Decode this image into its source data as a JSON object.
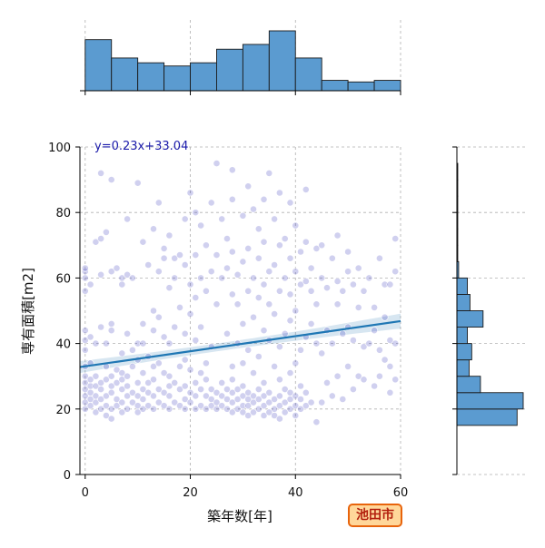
{
  "chart_data": {
    "type": "scatter",
    "subtype": "jointplot with regression line and marginal histograms",
    "xlabel": "築年数[年]",
    "ylabel": "専有面積[m2]",
    "xlim": [
      -1,
      60
    ],
    "ylim": [
      0,
      100
    ],
    "xticks": [
      "0",
      "20",
      "40",
      "60"
    ],
    "yticks": [
      "0",
      "20",
      "40",
      "60",
      "80",
      "100"
    ],
    "grid": true,
    "annotation": "y=0.23x+33.04",
    "regression": {
      "slope": 0.23,
      "intercept": 33.04
    },
    "badge": "池田市",
    "colors": {
      "points": "#2a2ab8",
      "regression_line": "#1f77b4",
      "histogram_fill": "#5b9bd0",
      "annotation": "#1a1aaa",
      "badge_border": "#e8640c",
      "badge_fill": "#ffd79a",
      "badge_text": "#b3200e"
    },
    "x_histogram": {
      "bin_edges": [
        0,
        5,
        10,
        15,
        20,
        25,
        30,
        35,
        40,
        45,
        50,
        55,
        60
      ],
      "counts": [
        64,
        41,
        35,
        31,
        35,
        52,
        58,
        75,
        41,
        13,
        11,
        13,
        7
      ]
    },
    "y_histogram": {
      "bin_edges": [
        10,
        15,
        20,
        25,
        30,
        35,
        40,
        45,
        50,
        55,
        60,
        65,
        70,
        75,
        80,
        85,
        90,
        95
      ],
      "counts": [
        0,
        69,
        76,
        27,
        14,
        17,
        12,
        30,
        15,
        12,
        2,
        1,
        1,
        1,
        1,
        1,
        1
      ]
    },
    "points": [
      [
        0,
        20
      ],
      [
        0,
        22
      ],
      [
        0,
        24
      ],
      [
        0,
        26
      ],
      [
        0,
        28
      ],
      [
        0,
        30
      ],
      [
        0,
        33
      ],
      [
        0,
        38
      ],
      [
        0,
        41
      ],
      [
        0,
        44
      ],
      [
        0,
        56
      ],
      [
        0,
        60
      ],
      [
        0,
        62
      ],
      [
        0,
        63
      ],
      [
        1,
        21
      ],
      [
        1,
        23
      ],
      [
        1,
        25
      ],
      [
        1,
        27
      ],
      [
        1,
        29
      ],
      [
        1,
        34
      ],
      [
        1,
        42
      ],
      [
        1,
        58
      ],
      [
        2,
        19
      ],
      [
        2,
        22
      ],
      [
        2,
        24
      ],
      [
        2,
        27
      ],
      [
        2,
        30
      ],
      [
        2,
        40
      ],
      [
        2,
        71
      ],
      [
        3,
        20
      ],
      [
        3,
        23
      ],
      [
        3,
        26
      ],
      [
        3,
        28
      ],
      [
        3,
        45
      ],
      [
        3,
        61
      ],
      [
        3,
        72
      ],
      [
        3,
        92
      ],
      [
        4,
        18
      ],
      [
        4,
        21
      ],
      [
        4,
        24
      ],
      [
        4,
        29
      ],
      [
        4,
        33
      ],
      [
        4,
        40
      ],
      [
        4,
        74
      ],
      [
        5,
        17
      ],
      [
        5,
        20
      ],
      [
        5,
        25
      ],
      [
        5,
        27
      ],
      [
        5,
        30
      ],
      [
        5,
        44
      ],
      [
        5,
        46
      ],
      [
        5,
        62
      ],
      [
        5,
        90
      ],
      [
        6,
        21
      ],
      [
        6,
        23
      ],
      [
        6,
        28
      ],
      [
        6,
        32
      ],
      [
        6,
        63
      ],
      [
        7,
        19
      ],
      [
        7,
        22
      ],
      [
        7,
        26
      ],
      [
        7,
        29
      ],
      [
        7,
        31
      ],
      [
        7,
        37
      ],
      [
        7,
        58
      ],
      [
        7,
        60
      ],
      [
        8,
        20
      ],
      [
        8,
        24
      ],
      [
        8,
        27
      ],
      [
        8,
        30
      ],
      [
        8,
        43
      ],
      [
        8,
        61
      ],
      [
        8,
        78
      ],
      [
        9,
        22
      ],
      [
        9,
        25
      ],
      [
        9,
        33
      ],
      [
        9,
        38
      ],
      [
        9,
        60
      ],
      [
        10,
        19
      ],
      [
        10,
        21
      ],
      [
        10,
        24
      ],
      [
        10,
        28
      ],
      [
        10,
        35
      ],
      [
        10,
        40
      ],
      [
        10,
        89
      ],
      [
        11,
        20
      ],
      [
        11,
        23
      ],
      [
        11,
        26
      ],
      [
        11,
        31
      ],
      [
        11,
        40
      ],
      [
        11,
        46
      ],
      [
        11,
        71
      ],
      [
        12,
        21
      ],
      [
        12,
        25
      ],
      [
        12,
        28
      ],
      [
        12,
        36
      ],
      [
        12,
        64
      ],
      [
        13,
        20
      ],
      [
        13,
        24
      ],
      [
        13,
        29
      ],
      [
        13,
        33
      ],
      [
        13,
        44
      ],
      [
        13,
        50
      ],
      [
        13,
        75
      ],
      [
        14,
        22
      ],
      [
        14,
        26
      ],
      [
        14,
        34
      ],
      [
        14,
        48
      ],
      [
        14,
        62
      ],
      [
        14,
        83
      ],
      [
        15,
        21
      ],
      [
        15,
        25
      ],
      [
        15,
        31
      ],
      [
        15,
        42
      ],
      [
        15,
        66
      ],
      [
        15,
        69
      ],
      [
        16,
        20
      ],
      [
        16,
        24
      ],
      [
        16,
        27
      ],
      [
        16,
        30
      ],
      [
        16,
        40
      ],
      [
        16,
        57
      ],
      [
        16,
        73
      ],
      [
        17,
        22
      ],
      [
        17,
        28
      ],
      [
        17,
        45
      ],
      [
        17,
        60
      ],
      [
        17,
        66
      ],
      [
        18,
        21
      ],
      [
        18,
        26
      ],
      [
        18,
        33
      ],
      [
        18,
        51
      ],
      [
        18,
        67
      ],
      [
        19,
        20
      ],
      [
        19,
        23
      ],
      [
        19,
        27
      ],
      [
        19,
        35
      ],
      [
        19,
        43
      ],
      [
        19,
        64
      ],
      [
        19,
        78
      ],
      [
        20,
        22
      ],
      [
        20,
        25
      ],
      [
        20,
        32
      ],
      [
        20,
        49
      ],
      [
        20,
        58
      ],
      [
        20,
        86
      ],
      [
        21,
        20
      ],
      [
        21,
        24
      ],
      [
        21,
        28
      ],
      [
        21,
        41
      ],
      [
        21,
        54
      ],
      [
        21,
        67
      ],
      [
        21,
        80
      ],
      [
        22,
        21
      ],
      [
        22,
        26
      ],
      [
        22,
        31
      ],
      [
        22,
        45
      ],
      [
        22,
        60
      ],
      [
        22,
        76
      ],
      [
        23,
        20
      ],
      [
        23,
        24
      ],
      [
        23,
        29
      ],
      [
        23,
        34
      ],
      [
        23,
        56
      ],
      [
        23,
        70
      ],
      [
        24,
        21
      ],
      [
        24,
        23
      ],
      [
        24,
        26
      ],
      [
        24,
        39
      ],
      [
        24,
        62
      ],
      [
        24,
        83
      ],
      [
        25,
        20
      ],
      [
        25,
        22
      ],
      [
        25,
        25
      ],
      [
        25,
        52
      ],
      [
        25,
        67
      ],
      [
        25,
        95
      ],
      [
        26,
        21
      ],
      [
        26,
        24
      ],
      [
        26,
        28
      ],
      [
        26,
        60
      ],
      [
        26,
        78
      ],
      [
        27,
        20
      ],
      [
        27,
        23
      ],
      [
        27,
        26
      ],
      [
        27,
        43
      ],
      [
        27,
        63
      ],
      [
        27,
        72
      ],
      [
        28,
        19
      ],
      [
        28,
        22
      ],
      [
        28,
        25
      ],
      [
        28,
        29
      ],
      [
        28,
        33
      ],
      [
        28,
        55
      ],
      [
        28,
        68
      ],
      [
        28,
        84
      ],
      [
        28,
        93
      ],
      [
        29,
        20
      ],
      [
        29,
        23
      ],
      [
        29,
        26
      ],
      [
        29,
        40
      ],
      [
        29,
        52
      ],
      [
        29,
        61
      ],
      [
        30,
        19
      ],
      [
        30,
        21
      ],
      [
        30,
        24
      ],
      [
        30,
        27
      ],
      [
        30,
        34
      ],
      [
        30,
        46
      ],
      [
        30,
        65
      ],
      [
        30,
        79
      ],
      [
        31,
        18
      ],
      [
        31,
        21
      ],
      [
        31,
        23
      ],
      [
        31,
        25
      ],
      [
        31,
        38
      ],
      [
        31,
        56
      ],
      [
        31,
        69
      ],
      [
        31,
        88
      ],
      [
        32,
        19
      ],
      [
        32,
        22
      ],
      [
        32,
        24
      ],
      [
        32,
        31
      ],
      [
        32,
        48
      ],
      [
        32,
        60
      ],
      [
        32,
        81
      ],
      [
        33,
        20
      ],
      [
        33,
        23
      ],
      [
        33,
        26
      ],
      [
        33,
        36
      ],
      [
        33,
        54
      ],
      [
        33,
        66
      ],
      [
        33,
        75
      ],
      [
        34,
        18
      ],
      [
        34,
        21
      ],
      [
        34,
        24
      ],
      [
        34,
        28
      ],
      [
        34,
        44
      ],
      [
        34,
        58
      ],
      [
        34,
        71
      ],
      [
        34,
        84
      ],
      [
        35,
        19
      ],
      [
        35,
        22
      ],
      [
        35,
        25
      ],
      [
        35,
        41
      ],
      [
        35,
        52
      ],
      [
        35,
        62
      ],
      [
        35,
        92
      ],
      [
        36,
        18
      ],
      [
        36,
        20
      ],
      [
        36,
        23
      ],
      [
        36,
        33
      ],
      [
        36,
        49
      ],
      [
        36,
        64
      ],
      [
        36,
        78
      ],
      [
        37,
        17
      ],
      [
        37,
        21
      ],
      [
        37,
        24
      ],
      [
        37,
        29
      ],
      [
        37,
        39
      ],
      [
        37,
        56
      ],
      [
        37,
        70
      ],
      [
        37,
        86
      ],
      [
        38,
        19
      ],
      [
        38,
        22
      ],
      [
        38,
        26
      ],
      [
        38,
        43
      ],
      [
        38,
        60
      ],
      [
        38,
        72
      ],
      [
        39,
        20
      ],
      [
        39,
        23
      ],
      [
        39,
        25
      ],
      [
        39,
        31
      ],
      [
        39,
        47
      ],
      [
        39,
        55
      ],
      [
        39,
        66
      ],
      [
        39,
        83
      ],
      [
        40,
        18
      ],
      [
        40,
        21
      ],
      [
        40,
        24
      ],
      [
        40,
        34
      ],
      [
        40,
        50
      ],
      [
        40,
        62
      ],
      [
        40,
        76
      ],
      [
        41,
        20
      ],
      [
        41,
        23
      ],
      [
        41,
        27
      ],
      [
        41,
        38
      ],
      [
        41,
        58
      ],
      [
        41,
        68
      ],
      [
        42,
        21
      ],
      [
        42,
        25
      ],
      [
        42,
        42
      ],
      [
        42,
        59
      ],
      [
        42,
        71
      ],
      [
        42,
        87
      ],
      [
        43,
        22
      ],
      [
        43,
        46
      ],
      [
        43,
        56
      ],
      [
        43,
        63
      ],
      [
        44,
        16
      ],
      [
        44,
        40
      ],
      [
        44,
        52
      ],
      [
        44,
        69
      ],
      [
        45,
        22
      ],
      [
        45,
        37
      ],
      [
        45,
        60
      ],
      [
        45,
        70
      ],
      [
        46,
        28
      ],
      [
        46,
        44
      ],
      [
        46,
        57
      ],
      [
        47,
        24
      ],
      [
        47,
        40
      ],
      [
        47,
        66
      ],
      [
        48,
        30
      ],
      [
        48,
        52
      ],
      [
        48,
        59
      ],
      [
        48,
        73
      ],
      [
        49,
        23
      ],
      [
        49,
        43
      ],
      [
        49,
        56
      ],
      [
        50,
        33
      ],
      [
        50,
        45
      ],
      [
        50,
        62
      ],
      [
        50,
        68
      ],
      [
        51,
        26
      ],
      [
        51,
        41
      ],
      [
        51,
        58
      ],
      [
        52,
        30
      ],
      [
        52,
        51
      ],
      [
        52,
        63
      ],
      [
        53,
        29
      ],
      [
        53,
        39
      ],
      [
        53,
        56
      ],
      [
        54,
        40
      ],
      [
        54,
        60
      ],
      [
        55,
        27
      ],
      [
        55,
        44
      ],
      [
        55,
        51
      ],
      [
        56,
        30
      ],
      [
        56,
        38
      ],
      [
        56,
        66
      ],
      [
        57,
        35
      ],
      [
        57,
        48
      ],
      [
        57,
        58
      ],
      [
        58,
        25
      ],
      [
        58,
        33
      ],
      [
        58,
        41
      ],
      [
        58,
        58
      ],
      [
        59,
        29
      ],
      [
        59,
        40
      ],
      [
        59,
        62
      ],
      [
        59,
        72
      ]
    ]
  }
}
